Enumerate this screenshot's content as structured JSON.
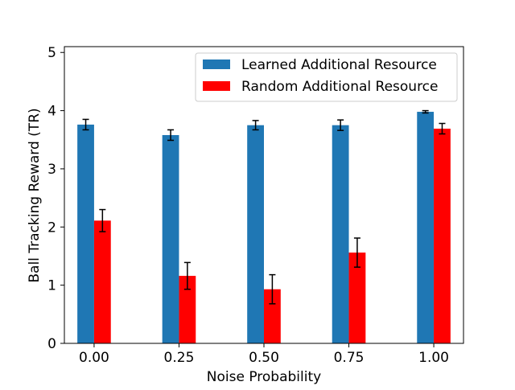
{
  "chart_data": {
    "type": "bar",
    "title": "",
    "xlabel": "Noise Probability",
    "ylabel": "Ball Tracking Reward (TR)",
    "categories": [
      "0.00",
      "0.25",
      "0.50",
      "0.75",
      "1.00"
    ],
    "x": [
      0.0,
      0.25,
      0.5,
      0.75,
      1.0
    ],
    "xlim": [
      -0.0875,
      1.0875
    ],
    "ylim": [
      0,
      5.1
    ],
    "yticks": [
      0,
      1,
      2,
      3,
      4,
      5
    ],
    "grid": false,
    "legend_position": "top-right",
    "series": [
      {
        "name": "Learned Additional Resource",
        "color": "#1f77b4",
        "values": [
          3.76,
          3.58,
          3.75,
          3.75,
          3.98
        ],
        "errors": [
          0.09,
          0.09,
          0.08,
          0.09,
          0.02
        ]
      },
      {
        "name": "Random Additional Resource",
        "color": "#ff0000",
        "values": [
          2.11,
          1.16,
          0.93,
          1.56,
          3.69
        ],
        "errors": [
          0.19,
          0.23,
          0.25,
          0.25,
          0.09
        ]
      }
    ]
  }
}
